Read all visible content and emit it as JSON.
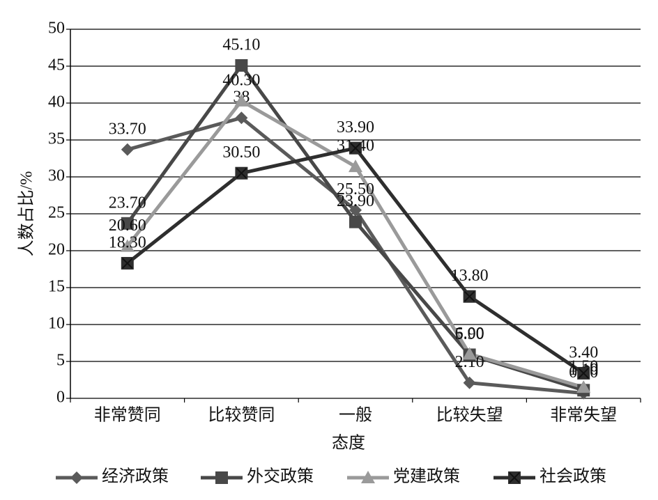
{
  "chart_data": {
    "type": "line",
    "x_label": "态度",
    "y_label": "人数占比/%",
    "categories": [
      "非常赞同",
      "比较赞同",
      "一般",
      "比较失望",
      "非常失望"
    ],
    "series": [
      {
        "name": "经济政策",
        "color": "#5a5a5a",
        "marker": "diamond",
        "values": [
          33.7,
          38,
          25.5,
          2.1,
          0.7
        ],
        "value_labels": [
          "33.70",
          "38",
          "25.50",
          "2.10",
          "0.70"
        ]
      },
      {
        "name": "外交政策",
        "color": "#484848",
        "marker": "square",
        "values": [
          23.7,
          45.1,
          23.9,
          5.9,
          1.1
        ],
        "value_labels": [
          "23.70",
          "45.10",
          "23.90",
          "5.90",
          "1.10"
        ]
      },
      {
        "name": "党建政策",
        "color": "#9a9a9a",
        "marker": "triangle",
        "values": [
          20.6,
          40.3,
          31.4,
          6.0,
          1.5
        ],
        "value_labels": [
          "20.60",
          "40.30",
          "31.40",
          "6.00",
          "1.50"
        ]
      },
      {
        "name": "社会政策",
        "color": "#2e2e2e",
        "marker": "xsquare",
        "values": [
          18.3,
          30.5,
          33.9,
          13.8,
          3.4
        ],
        "value_labels": [
          "18.30",
          "30.50",
          "33.90",
          "13.80",
          "3.40"
        ]
      }
    ],
    "ylim": [
      0,
      50
    ],
    "yticks": [
      0,
      5,
      10,
      15,
      20,
      25,
      30,
      35,
      40,
      45,
      50
    ],
    "grid": true
  }
}
